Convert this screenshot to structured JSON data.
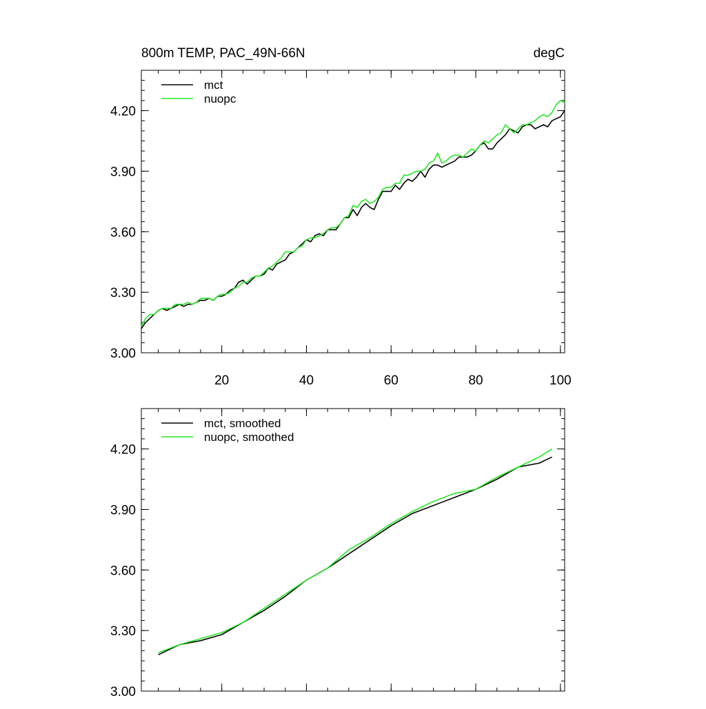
{
  "chart_data": [
    {
      "type": "line",
      "title": "800m TEMP, PAC_49N-66N",
      "units": "degC",
      "xlim": [
        1,
        101
      ],
      "ylim": [
        3.0,
        4.4
      ],
      "yticks": [
        3.0,
        3.3,
        3.6,
        3.9,
        4.2
      ],
      "ytick_labels": [
        "3.00",
        "3.30",
        "3.60",
        "3.90",
        "4.20"
      ],
      "xticks": [
        20,
        40,
        60,
        80,
        100
      ],
      "xtick_labels": [
        "20",
        "40",
        "60",
        "80",
        "100"
      ],
      "legend_position": "top-left",
      "series": [
        {
          "name": "mct",
          "color": "#000000",
          "x": [
            1,
            2,
            3,
            4,
            5,
            6,
            7,
            8,
            9,
            10,
            11,
            12,
            13,
            14,
            15,
            16,
            17,
            18,
            19,
            20,
            21,
            22,
            23,
            24,
            25,
            26,
            27,
            28,
            29,
            30,
            31,
            32,
            33,
            34,
            35,
            36,
            37,
            38,
            39,
            40,
            41,
            42,
            43,
            44,
            45,
            46,
            47,
            48,
            49,
            50,
            51,
            52,
            53,
            54,
            55,
            56,
            57,
            58,
            59,
            60,
            61,
            62,
            63,
            64,
            65,
            66,
            67,
            68,
            69,
            70,
            71,
            72,
            73,
            74,
            75,
            76,
            77,
            78,
            79,
            80,
            81,
            82,
            83,
            84,
            85,
            86,
            87,
            88,
            89,
            90,
            91,
            92,
            93,
            94,
            95,
            96,
            97,
            98,
            99,
            100,
            101
          ],
          "values": [
            3.12,
            3.15,
            3.17,
            3.19,
            3.21,
            3.22,
            3.21,
            3.22,
            3.23,
            3.24,
            3.23,
            3.24,
            3.24,
            3.25,
            3.26,
            3.26,
            3.27,
            3.26,
            3.28,
            3.28,
            3.29,
            3.31,
            3.32,
            3.35,
            3.36,
            3.34,
            3.36,
            3.38,
            3.38,
            3.39,
            3.42,
            3.41,
            3.44,
            3.45,
            3.46,
            3.49,
            3.5,
            3.52,
            3.54,
            3.56,
            3.55,
            3.58,
            3.59,
            3.58,
            3.61,
            3.61,
            3.61,
            3.64,
            3.67,
            3.67,
            3.71,
            3.68,
            3.72,
            3.74,
            3.72,
            3.71,
            3.76,
            3.8,
            3.8,
            3.8,
            3.83,
            3.81,
            3.84,
            3.86,
            3.85,
            3.87,
            3.9,
            3.87,
            3.91,
            3.93,
            3.93,
            3.92,
            3.93,
            3.94,
            3.95,
            3.97,
            3.97,
            3.97,
            3.98,
            4.0,
            4.03,
            4.04,
            4.01,
            4.01,
            4.04,
            4.06,
            4.08,
            4.11,
            4.1,
            4.09,
            4.12,
            4.13,
            4.13,
            4.11,
            4.12,
            4.13,
            4.12,
            4.15,
            4.16,
            4.17,
            4.2
          ]
        },
        {
          "name": "nuopc",
          "color": "#22e722",
          "x": [
            1,
            2,
            3,
            4,
            5,
            6,
            7,
            8,
            9,
            10,
            11,
            12,
            13,
            14,
            15,
            16,
            17,
            18,
            19,
            20,
            21,
            22,
            23,
            24,
            25,
            26,
            27,
            28,
            29,
            30,
            31,
            32,
            33,
            34,
            35,
            36,
            37,
            38,
            39,
            40,
            41,
            42,
            43,
            44,
            45,
            46,
            47,
            48,
            49,
            50,
            51,
            52,
            53,
            54,
            55,
            56,
            57,
            58,
            59,
            60,
            61,
            62,
            63,
            64,
            65,
            66,
            67,
            68,
            69,
            70,
            71,
            72,
            73,
            74,
            75,
            76,
            77,
            78,
            79,
            80,
            81,
            82,
            83,
            84,
            85,
            86,
            87,
            88,
            89,
            90,
            91,
            92,
            93,
            94,
            95,
            96,
            97,
            98,
            99,
            100,
            101
          ],
          "values": [
            3.13,
            3.17,
            3.19,
            3.19,
            3.21,
            3.22,
            3.22,
            3.22,
            3.24,
            3.24,
            3.24,
            3.25,
            3.24,
            3.25,
            3.27,
            3.27,
            3.27,
            3.26,
            3.28,
            3.29,
            3.29,
            3.3,
            3.32,
            3.33,
            3.35,
            3.35,
            3.37,
            3.38,
            3.38,
            3.4,
            3.42,
            3.43,
            3.45,
            3.47,
            3.5,
            3.5,
            3.5,
            3.52,
            3.53,
            3.56,
            3.57,
            3.57,
            3.58,
            3.59,
            3.61,
            3.62,
            3.62,
            3.64,
            3.67,
            3.68,
            3.73,
            3.72,
            3.75,
            3.76,
            3.74,
            3.75,
            3.77,
            3.81,
            3.82,
            3.82,
            3.84,
            3.84,
            3.88,
            3.88,
            3.89,
            3.9,
            3.9,
            3.91,
            3.94,
            3.95,
            3.99,
            3.94,
            3.95,
            3.97,
            3.98,
            3.98,
            3.97,
            3.99,
            4.01,
            4.0,
            4.03,
            4.05,
            4.04,
            4.06,
            4.08,
            4.09,
            4.13,
            4.11,
            4.09,
            4.11,
            4.13,
            4.13,
            4.14,
            4.15,
            4.17,
            4.18,
            4.17,
            4.19,
            4.23,
            4.25,
            4.24
          ]
        }
      ]
    },
    {
      "type": "line",
      "xlim": [
        1,
        101
      ],
      "ylim": [
        3.0,
        4.4
      ],
      "yticks": [
        3.0,
        3.3,
        3.6,
        3.9,
        4.2
      ],
      "ytick_labels": [
        "3.00",
        "3.30",
        "3.60",
        "3.90",
        "4.20"
      ],
      "xticks": [
        20,
        40,
        60,
        80,
        100
      ],
      "legend_position": "top-left",
      "series": [
        {
          "name": "mct, smoothed",
          "color": "#000000",
          "x": [
            5,
            10,
            15,
            20,
            25,
            30,
            35,
            40,
            45,
            50,
            55,
            60,
            65,
            70,
            75,
            80,
            85,
            90,
            95,
            98
          ],
          "values": [
            3.18,
            3.23,
            3.25,
            3.28,
            3.34,
            3.4,
            3.47,
            3.55,
            3.61,
            3.68,
            3.75,
            3.82,
            3.88,
            3.92,
            3.96,
            4.0,
            4.05,
            4.11,
            4.13,
            4.16
          ]
        },
        {
          "name": "nuopc, smoothed",
          "color": "#22e722",
          "x": [
            5,
            10,
            15,
            20,
            25,
            30,
            35,
            40,
            45,
            50,
            55,
            60,
            65,
            70,
            75,
            80,
            85,
            90,
            95,
            98
          ],
          "values": [
            3.19,
            3.23,
            3.26,
            3.29,
            3.34,
            3.41,
            3.48,
            3.55,
            3.61,
            3.7,
            3.76,
            3.83,
            3.89,
            3.94,
            3.98,
            4.0,
            4.06,
            4.11,
            4.16,
            4.2
          ]
        }
      ]
    }
  ]
}
